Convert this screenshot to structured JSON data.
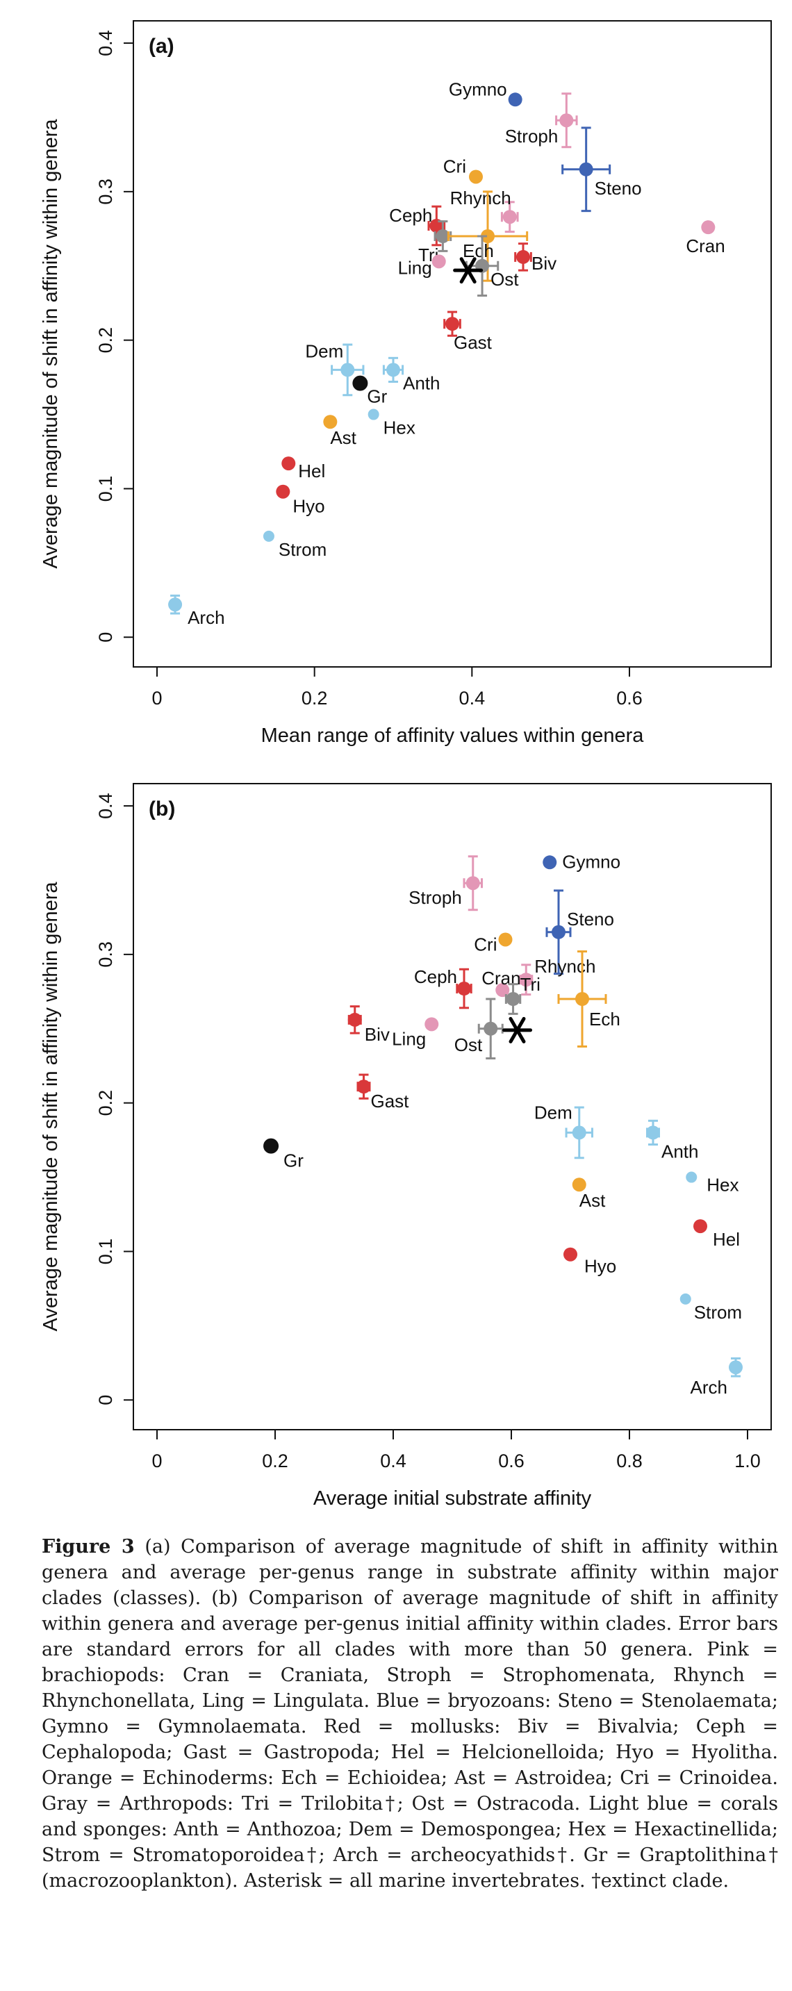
{
  "chart_data": [
    {
      "type": "scatter",
      "panel_label": "(a)",
      "xlabel": "Mean range of affinity values within genera",
      "ylabel": "Average magnitude of shift in affinity within genera",
      "xlim": [
        -0.03,
        0.78
      ],
      "ylim": [
        -0.02,
        0.415
      ],
      "xticks": [
        "0",
        "0.2",
        "0.4",
        "0.6"
      ],
      "yticks": [
        "0",
        "0.1",
        "0.2",
        "0.3",
        "0.4"
      ],
      "points": [
        {
          "label": "Gymno",
          "x": 0.455,
          "y": 0.362,
          "color": "#3f64b4"
        },
        {
          "label": "Stroph",
          "x": 0.52,
          "y": 0.348,
          "color": "#e397b6",
          "xerr": 0.013,
          "yerr": 0.018
        },
        {
          "label": "Steno",
          "x": 0.545,
          "y": 0.315,
          "color": "#3f64b4",
          "xerr": 0.03,
          "yerr": 0.028
        },
        {
          "label": "Cri",
          "x": 0.405,
          "y": 0.31,
          "color": "#efa62f"
        },
        {
          "label": "Rhynch",
          "x": 0.448,
          "y": 0.283,
          "color": "#e397b6",
          "xerr": 0.01,
          "yerr": 0.01
        },
        {
          "label": "Cran",
          "x": 0.7,
          "y": 0.276,
          "color": "#e397b6"
        },
        {
          "label": "Ceph",
          "x": 0.355,
          "y": 0.277,
          "color": "#d9383a",
          "xerr": 0.01,
          "yerr": 0.013
        },
        {
          "label": "Tri",
          "x": 0.363,
          "y": 0.27,
          "color": "#8c8c8c",
          "xerr": 0.01,
          "yerr": 0.01
        },
        {
          "label": "Ech",
          "x": 0.42,
          "y": 0.27,
          "color": "#efa62f",
          "xerr": 0.05,
          "yerr": 0.03
        },
        {
          "label": "Ling",
          "x": 0.358,
          "y": 0.253,
          "color": "#e397b6"
        },
        {
          "label": "Ost",
          "x": 0.413,
          "y": 0.25,
          "color": "#8c8c8c",
          "xerr": 0.02,
          "yerr": 0.02
        },
        {
          "label": "Biv",
          "x": 0.465,
          "y": 0.256,
          "color": "#d9383a",
          "xerr": 0.01,
          "yerr": 0.009
        },
        {
          "label": "Gast",
          "x": 0.375,
          "y": 0.211,
          "color": "#d9383a",
          "xerr": 0.01,
          "yerr": 0.008
        },
        {
          "label": "Dem",
          "x": 0.242,
          "y": 0.18,
          "color": "#8ecae8",
          "xerr": 0.02,
          "yerr": 0.017
        },
        {
          "label": "Gr",
          "x": 0.258,
          "y": 0.171,
          "color": "#111111"
        },
        {
          "label": "Anth",
          "x": 0.3,
          "y": 0.18,
          "color": "#8ecae8",
          "xerr": 0.012,
          "yerr": 0.008
        },
        {
          "label": "Hex",
          "x": 0.275,
          "y": 0.15,
          "color": "#8ecae8"
        },
        {
          "label": "Ast",
          "x": 0.22,
          "y": 0.145,
          "color": "#efa62f"
        },
        {
          "label": "Hel",
          "x": 0.167,
          "y": 0.117,
          "color": "#d9383a"
        },
        {
          "label": "Hyo",
          "x": 0.16,
          "y": 0.098,
          "color": "#d9383a"
        },
        {
          "label": "Strom",
          "x": 0.142,
          "y": 0.068,
          "color": "#8ecae8"
        },
        {
          "label": "Arch",
          "x": 0.023,
          "y": 0.022,
          "color": "#8ecae8",
          "yerr": 0.006
        }
      ],
      "asterisk": {
        "x": 0.395,
        "y": 0.247
      }
    },
    {
      "type": "scatter",
      "panel_label": "(b)",
      "xlabel": "Average initial substrate affinity",
      "ylabel": "Average magnitude of shift in affinity within genera",
      "xlim": [
        -0.04,
        1.04
      ],
      "ylim": [
        -0.02,
        0.415
      ],
      "xticks": [
        "0",
        "0.2",
        "0.4",
        "0.6",
        "0.8",
        "1.0"
      ],
      "yticks": [
        "0",
        "0.1",
        "0.2",
        "0.3",
        "0.4"
      ],
      "points": [
        {
          "label": "Gymno",
          "x": 0.665,
          "y": 0.362,
          "color": "#3f64b4"
        },
        {
          "label": "Stroph",
          "x": 0.535,
          "y": 0.348,
          "color": "#e397b6",
          "xerr": 0.015,
          "yerr": 0.018
        },
        {
          "label": "Steno",
          "x": 0.68,
          "y": 0.315,
          "color": "#3f64b4",
          "xerr": 0.02,
          "yerr": 0.028
        },
        {
          "label": "Cri",
          "x": 0.59,
          "y": 0.31,
          "color": "#efa62f"
        },
        {
          "label": "Rhynch",
          "x": 0.625,
          "y": 0.283,
          "color": "#e397b6",
          "xerr": 0.01,
          "yerr": 0.01
        },
        {
          "label": "Ceph",
          "x": 0.52,
          "y": 0.277,
          "color": "#d9383a",
          "xerr": 0.012,
          "yerr": 0.013
        },
        {
          "label": "Cran",
          "x": 0.585,
          "y": 0.276,
          "color": "#e397b6"
        },
        {
          "label": "Tri",
          "x": 0.603,
          "y": 0.27,
          "color": "#8c8c8c",
          "xerr": 0.012,
          "yerr": 0.01
        },
        {
          "label": "Ech",
          "x": 0.72,
          "y": 0.27,
          "color": "#efa62f",
          "xerr": 0.04,
          "yerr": 0.032
        },
        {
          "label": "Biv",
          "x": 0.335,
          "y": 0.256,
          "color": "#d9383a",
          "xerr": 0.01,
          "yerr": 0.009
        },
        {
          "label": "Ling",
          "x": 0.465,
          "y": 0.253,
          "color": "#e397b6"
        },
        {
          "label": "Ost",
          "x": 0.565,
          "y": 0.25,
          "color": "#8c8c8c",
          "xerr": 0.02,
          "yerr": 0.02
        },
        {
          "label": "Gast",
          "x": 0.35,
          "y": 0.211,
          "color": "#d9383a",
          "xerr": 0.01,
          "yerr": 0.008
        },
        {
          "label": "Gr",
          "x": 0.193,
          "y": 0.171,
          "color": "#111111"
        },
        {
          "label": "Dem",
          "x": 0.715,
          "y": 0.18,
          "color": "#8ecae8",
          "xerr": 0.022,
          "yerr": 0.017
        },
        {
          "label": "Anth",
          "x": 0.84,
          "y": 0.18,
          "color": "#8ecae8",
          "xerr": 0.01,
          "yerr": 0.008
        },
        {
          "label": "Hex",
          "x": 0.905,
          "y": 0.15,
          "color": "#8ecae8"
        },
        {
          "label": "Ast",
          "x": 0.715,
          "y": 0.145,
          "color": "#efa62f"
        },
        {
          "label": "Hel",
          "x": 0.92,
          "y": 0.117,
          "color": "#d9383a"
        },
        {
          "label": "Hyo",
          "x": 0.7,
          "y": 0.098,
          "color": "#d9383a"
        },
        {
          "label": "Strom",
          "x": 0.895,
          "y": 0.068,
          "color": "#8ecae8"
        },
        {
          "label": "Arch",
          "x": 0.98,
          "y": 0.022,
          "color": "#8ecae8",
          "yerr": 0.006
        }
      ],
      "asterisk": {
        "x": 0.61,
        "y": 0.249
      }
    }
  ],
  "caption": {
    "label": "Figure 3",
    "text": "(a) Comparison of average magnitude of shift in affinity within genera and average per-genus range in substrate affinity within major clades (classes). (b) Comparison of average magnitude of shift in affinity within genera and average per-genus initial affinity within clades. Error bars are standard errors for all clades with more than 50 genera. Pink = brachiopods: Cran = Craniata, Stroph = Strophomenata, Rhynch = Rhynchonellata, Ling = Lingulata. Blue = bryozoans: Steno = Stenolaemata; Gymno = Gymnolaemata. Red = mollusks: Biv = Bivalvia; Ceph = Cephalopoda; Gast = Gastropoda; Hel = Helcionelloida; Hyo = Hyolitha. Orange = Echinoderms: Ech = Echioidea; Ast = Astroidea; Cri = Crinoidea. Gray = Arthropods: Tri = Trilobita†; Ost = Ostracoda. Light blue = corals and sponges: Anth = Anthozoa; Dem = Demospongea; Hex = Hexactinellida; Strom = Stromatoporoidea†; Arch = archeocyathids†. Gr = Graptolithina† (macrozooplankton). Asterisk = all marine invertebrates. †extinct clade."
  }
}
